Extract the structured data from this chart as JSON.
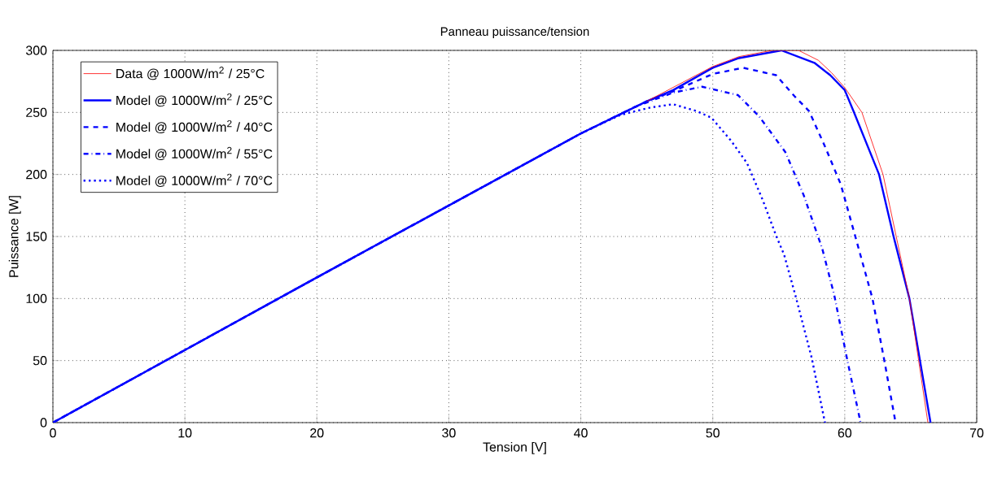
{
  "chart_data": {
    "type": "line",
    "title": "Panneau puissance/tension",
    "xlabel": "Tension [V]",
    "ylabel": "Puissance [W]",
    "xlim": [
      0,
      70
    ],
    "ylim": [
      0,
      300
    ],
    "xticks": [
      0,
      10,
      20,
      30,
      40,
      50,
      60,
      70
    ],
    "yticks": [
      0,
      50,
      100,
      150,
      200,
      250,
      300
    ],
    "grid": true,
    "legend": "top left",
    "marker": "none",
    "series": [
      {
        "name": "Data @ 1000W/m$^{2}$ / 25°C",
        "color": "#ff0000",
        "line_style": "solid",
        "x": [
          45,
          50,
          52,
          54.5,
          56.5,
          58,
          59,
          60,
          61.3,
          62.9,
          63.9,
          64.9,
          65.6,
          66.3
        ],
        "values": [
          259,
          287,
          295,
          300,
          300,
          292,
          282,
          270,
          250,
          200,
          150,
          100,
          50,
          0
        ]
      },
      {
        "name": "Model @ 1000W/m$^{2}$ / 25°C",
        "color": "#0000ff",
        "line_style": "solid",
        "x": [
          0,
          10,
          20,
          30,
          40,
          45,
          47,
          50,
          51.9,
          55.2,
          57.7,
          58.9,
          60,
          60.7,
          62.6,
          63.7,
          64.9,
          65.7,
          66.5
        ],
        "values": [
          0,
          58.5,
          117,
          175,
          233,
          259,
          268,
          286,
          293.6,
          300,
          290,
          280,
          268,
          250,
          200,
          150,
          100,
          50,
          0
        ]
      },
      {
        "name": "Model @ 1000W/m$^{2}$ / 40°C",
        "color": "#0000ff",
        "line_style": "dashed",
        "x": [
          0,
          10,
          20,
          30,
          40,
          45,
          47,
          50,
          52.3,
          54.8,
          56.2,
          57.3,
          58.5,
          59.7,
          60.8,
          62.1,
          63,
          63.85
        ],
        "values": [
          0,
          58.5,
          117,
          175,
          233,
          259,
          267,
          281,
          286,
          280,
          263,
          251,
          222.6,
          192,
          150,
          100,
          50,
          0
        ]
      },
      {
        "name": "Model @ 1000W/m$^{2}$ / 55°C",
        "color": "#0000ff",
        "line_style": "dashdot",
        "x": [
          0,
          10,
          20,
          30,
          40,
          44,
          47,
          49.2,
          51.9,
          53.5,
          55.5,
          56.9,
          58.3,
          59.2,
          60.2,
          61.2
        ],
        "values": [
          0,
          58.5,
          117,
          175,
          233,
          254,
          266,
          270.7,
          264,
          247,
          218,
          183,
          140,
          103,
          50,
          0
        ]
      },
      {
        "name": "Model @ 1000W/m$^{2}$ / 70°C",
        "color": "#0000ff",
        "line_style": "dotted",
        "x": [
          0,
          10,
          20,
          30,
          40,
          43,
          45.3,
          47,
          48.8,
          49.9,
          51.4,
          52.6,
          53.8,
          54.8,
          55.4,
          56.3,
          57.5,
          58.5
        ],
        "values": [
          0,
          58.5,
          117,
          175,
          233,
          248,
          254,
          256.6,
          251,
          245.7,
          227,
          209,
          179,
          150.6,
          135.5,
          101,
          52,
          0
        ]
      }
    ]
  }
}
